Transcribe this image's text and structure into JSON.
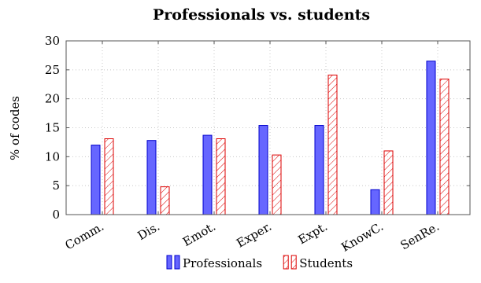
{
  "chart_data": {
    "type": "bar",
    "title": "Professionals vs. students",
    "xlabel": "",
    "ylabel": "% of codes",
    "ylim": [
      0,
      30
    ],
    "yticks": [
      0,
      5,
      10,
      15,
      20,
      25,
      30
    ],
    "grid": true,
    "legend_position": "bottom",
    "categories": [
      "Comm.",
      "Dis.",
      "Emot.",
      "Exper.",
      "Expt.",
      "KnowC.",
      "SenRe."
    ],
    "series": [
      {
        "name": "Professionals",
        "values": [
          12.0,
          12.8,
          13.7,
          15.4,
          15.4,
          4.3,
          26.5
        ],
        "color": "#6666ff",
        "stroke": "#0000cc",
        "pattern": "solid"
      },
      {
        "name": "Students",
        "values": [
          13.1,
          4.8,
          13.1,
          10.3,
          24.1,
          11.0,
          23.4
        ],
        "color": "#ffffff",
        "stroke": "#dd0000",
        "pattern": "hatch"
      }
    ]
  }
}
